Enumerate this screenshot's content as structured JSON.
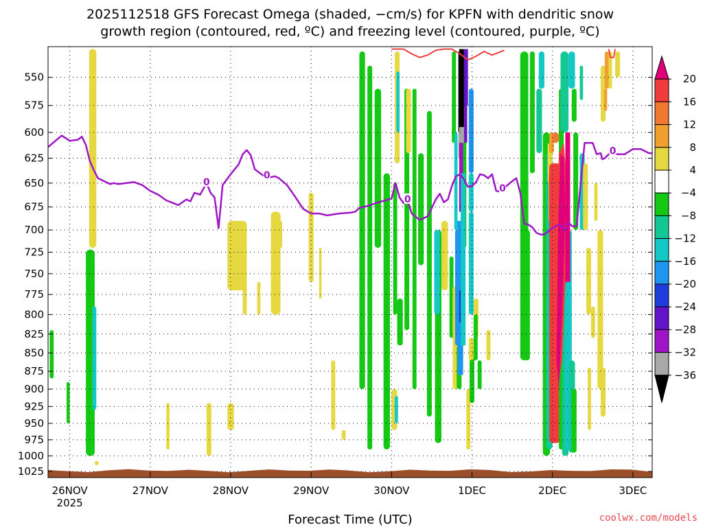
{
  "chart_data": {
    "type": "heatmap",
    "title_lines": [
      "2025112518 GFS Forecast Omega (shaded, −cm/s) for KPFN with dendritic snow",
      "growth region (contoured, red, ºC) and freezing level (contoured, purple, ºC)"
    ],
    "xlabel": "Forecast Time (UTC)",
    "credit": "coolwx.com/models",
    "credit_color": "#e8474f",
    "x_ticks": [
      {
        "label": "26NOV",
        "sub": "2025",
        "day": 0
      },
      {
        "label": "27NOV",
        "day": 1
      },
      {
        "label": "28NOV",
        "day": 2
      },
      {
        "label": "29NOV",
        "day": 3
      },
      {
        "label": "30NOV",
        "day": 4
      },
      {
        "label": "1DEC",
        "day": 5
      },
      {
        "label": "2DEC",
        "day": 6
      },
      {
        "label": "3DEC",
        "day": 7
      }
    ],
    "x_range_days": [
      -0.27,
      7.24
    ],
    "y_range_hpa": [
      1035,
      524
    ],
    "y_ticks": [
      550,
      575,
      600,
      625,
      650,
      675,
      700,
      725,
      750,
      775,
      800,
      825,
      850,
      875,
      900,
      925,
      950,
      975,
      1000,
      1025
    ],
    "colorbar": {
      "tick_labels": [
        "20",
        "16",
        "12",
        "8",
        "4",
        "−4",
        "−8",
        "−12",
        "−16",
        "−20",
        "−24",
        "−28",
        "−32",
        "−36"
      ],
      "colors": [
        "#e0007a",
        "#f03c3c",
        "#f07830",
        "#f0a030",
        "#e6d840",
        "#ffffff",
        "#14c814",
        "#14c896",
        "#14c8c8",
        "#1e96f0",
        "#1e3cdc",
        "#6414c8",
        "#a014c8",
        "#a8a8a8",
        "#000000"
      ]
    },
    "freezing_level_label": "0",
    "freezing_level_color": "#a014c8",
    "dgz_color": "#f03c3c",
    "ground_color": "#9a4f2a",
    "freezing_level": {
      "x_days": [
        -0.27,
        -0.1,
        0.0,
        0.1,
        0.15,
        0.2,
        0.25,
        0.3,
        0.35,
        0.5,
        0.55,
        0.6,
        0.8,
        0.9,
        1.0,
        1.1,
        1.2,
        1.35,
        1.45,
        1.5,
        1.55,
        1.62,
        1.7,
        1.75,
        1.8,
        1.85,
        1.9,
        2.0,
        2.05,
        2.1,
        2.15,
        2.2,
        2.25,
        2.3,
        2.4,
        2.5,
        2.55,
        2.6,
        2.7,
        2.8,
        2.9,
        3.0,
        3.1,
        3.2,
        3.35,
        3.5,
        3.55,
        3.6,
        3.7,
        3.8,
        4.0,
        4.05,
        4.1,
        4.15,
        4.2,
        4.25,
        4.35,
        4.45,
        4.55,
        4.6,
        4.65,
        4.7,
        4.75,
        4.8,
        4.85,
        4.9,
        4.95,
        5.0,
        5.05,
        5.1,
        5.15,
        5.2,
        5.25,
        5.3,
        5.35,
        5.4,
        5.5,
        5.55,
        5.6,
        5.65,
        5.7,
        5.75,
        5.8,
        5.85,
        5.9,
        6.0,
        6.05,
        6.1,
        6.15,
        6.2,
        6.25,
        6.3,
        6.4,
        6.5,
        6.55,
        6.6,
        6.62,
        6.65,
        6.7,
        6.75,
        6.8,
        6.85,
        6.9,
        7.0,
        7.1,
        7.2,
        7.24
      ],
      "p_hpa": [
        614,
        603,
        608,
        607,
        604,
        612,
        628,
        637,
        645,
        651,
        650,
        651,
        649,
        652,
        658,
        662,
        668,
        673,
        667,
        669,
        660,
        662,
        650,
        660,
        665,
        698,
        652,
        641,
        636,
        631,
        621,
        617,
        622,
        636,
        642,
        644,
        643,
        645,
        652,
        664,
        677,
        682,
        682,
        684,
        682,
        681,
        680,
        676,
        674,
        671,
        666,
        650,
        665,
        671,
        668,
        682,
        689,
        685,
        667,
        661,
        670,
        667,
        653,
        643,
        641,
        646,
        654,
        653,
        649,
        641,
        642,
        645,
        641,
        658,
        659,
        655,
        648,
        645,
        660,
        693,
        694,
        697,
        703,
        705,
        705,
        698,
        695,
        695,
        700,
        692,
        696,
        696,
        610,
        610,
        621,
        620,
        626,
        625,
        621,
        619,
        621,
        621,
        621,
        616,
        616,
        620,
        620
      ],
      "label_x_days": [
        1.7,
        2.45,
        4.2,
        5.38,
        6.75
      ]
    },
    "dgz_contour": {
      "x_days": [
        4.0,
        4.15,
        4.25,
        4.35,
        4.45,
        4.55,
        4.65,
        4.75,
        4.85,
        4.95,
        5.05,
        5.15,
        5.25,
        5.4
      ],
      "p_hpa": [
        526,
        526,
        530,
        533,
        531,
        527,
        526,
        526,
        530,
        535,
        532,
        528,
        531,
        527
      ]
    },
    "ground_hpa": 1027
  }
}
